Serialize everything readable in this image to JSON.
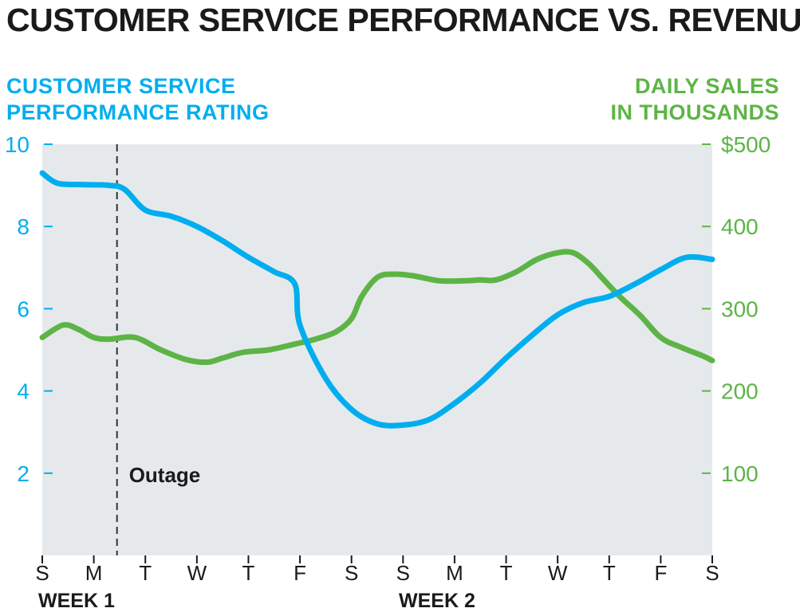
{
  "title": "CUSTOMER SERVICE PERFORMANCE VS. REVENUE",
  "colors": {
    "performance": "#00AEEF",
    "sales": "#5DB446",
    "plot_bg": "#E6E9EC",
    "text": "#1A1A1A",
    "outage": "#333333"
  },
  "chart_data": {
    "type": "line",
    "title": "CUSTOMER SERVICE PERFORMANCE VS. REVENUE",
    "x_tick_labels": [
      "S",
      "M",
      "T",
      "W",
      "T",
      "F",
      "S",
      "S",
      "M",
      "T",
      "W",
      "T",
      "F",
      "S"
    ],
    "week_labels": [
      {
        "text": "WEEK 1",
        "start_index": 0
      },
      {
        "text": "WEEK 2",
        "start_index": 7
      }
    ],
    "left_axis": {
      "title_lines": [
        "CUSTOMER SERVICE",
        "PERFORMANCE RATING"
      ],
      "ylim": [
        0,
        10
      ],
      "ticks": [
        10,
        8,
        6,
        4,
        2
      ],
      "tick_labels": [
        "10",
        "8",
        "6",
        "4",
        "2"
      ]
    },
    "right_axis": {
      "title_lines": [
        "DAILY SALES",
        "IN THOUSANDS"
      ],
      "ylim": [
        0,
        500
      ],
      "ticks": [
        500,
        400,
        300,
        200,
        100
      ],
      "tick_labels": [
        "$500",
        "400",
        "300",
        "200",
        "100"
      ]
    },
    "series": [
      {
        "name": "Customer service performance rating",
        "axis": "left",
        "x": [
          0,
          0.3,
          0.8,
          1.3,
          1.6,
          2.0,
          2.5,
          3.0,
          3.5,
          4.0,
          4.5,
          4.9,
          5.0,
          5.5,
          6.0,
          6.5,
          7.0,
          7.5,
          8.0,
          8.5,
          9.0,
          9.5,
          10.0,
          10.5,
          11.0,
          11.5,
          12.0,
          12.5,
          13.0
        ],
        "values": [
          9.3,
          9.05,
          9.02,
          9.0,
          8.9,
          8.4,
          8.25,
          8.0,
          7.65,
          7.25,
          6.9,
          6.6,
          5.6,
          4.3,
          3.55,
          3.2,
          3.17,
          3.3,
          3.7,
          4.2,
          4.8,
          5.35,
          5.85,
          6.15,
          6.3,
          6.6,
          6.95,
          7.25,
          7.2
        ]
      },
      {
        "name": "Daily sales (thousands)",
        "axis": "right",
        "x": [
          0,
          0.4,
          0.7,
          1.0,
          1.3,
          1.8,
          2.3,
          2.8,
          3.2,
          3.5,
          3.9,
          4.4,
          4.9,
          5.3,
          5.7,
          6.0,
          6.2,
          6.5,
          6.8,
          7.2,
          7.7,
          8.2,
          8.5,
          8.8,
          9.2,
          9.6,
          10.0,
          10.3,
          10.6,
          10.9,
          11.2,
          11.6,
          12.0,
          12.4,
          12.8,
          13.0
        ],
        "values": [
          265,
          280,
          275,
          265,
          263,
          265,
          250,
          238,
          235,
          240,
          247,
          250,
          257,
          263,
          272,
          288,
          315,
          338,
          342,
          340,
          334,
          334,
          335,
          335,
          345,
          360,
          368,
          368,
          355,
          335,
          315,
          292,
          265,
          253,
          243,
          237
        ]
      }
    ],
    "annotations": [
      {
        "text": "Outage",
        "x": 1.45,
        "style": "dashed-vertical-line"
      }
    ],
    "grid": false
  }
}
